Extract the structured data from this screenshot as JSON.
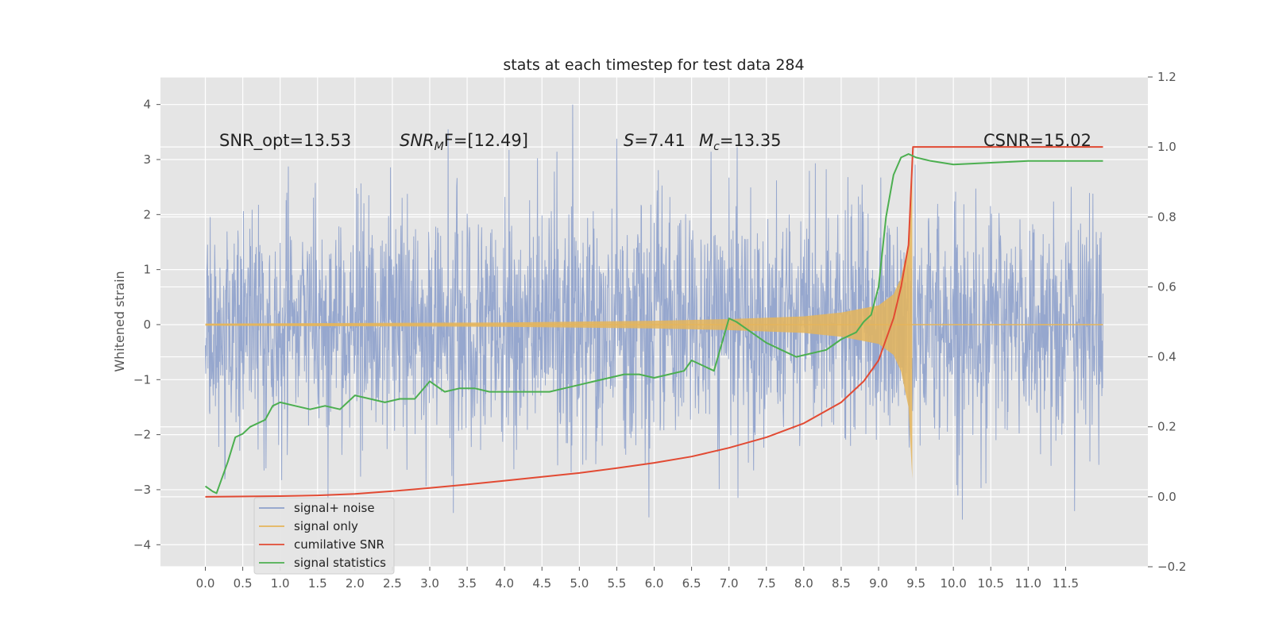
{
  "chart_data": {
    "type": "line",
    "title": "stats at each timestep for test data 284",
    "ylabel": "Whitened strain",
    "ylabel_right": "",
    "xlim": [
      -0.6,
      12.6
    ],
    "ylim": [
      -4.4,
      4.5
    ],
    "ylim_right": [
      -0.2,
      1.2
    ],
    "xticks": [
      "0.0",
      "0.5",
      "1.0",
      "1.5",
      "2.0",
      "2.5",
      "3.0",
      "3.5",
      "4.0",
      "4.5",
      "5.0",
      "5.5",
      "6.0",
      "6.5",
      "7.0",
      "7.5",
      "8.0",
      "8.5",
      "9.0",
      "9.5",
      "10.0",
      "10.5",
      "11.0",
      "11.5"
    ],
    "xtick_values": [
      0,
      0.5,
      1,
      1.5,
      2,
      2.5,
      3,
      3.5,
      4,
      4.5,
      5,
      5.5,
      6,
      6.5,
      7,
      7.5,
      8,
      8.5,
      9,
      9.5,
      10,
      10.5,
      11,
      11.5
    ],
    "yticks": [
      4,
      3,
      2,
      1,
      0,
      -1,
      -2,
      -3,
      -4
    ],
    "yticks_right": [
      1.2,
      1.0,
      0.8,
      0.6,
      0.4,
      0.2,
      0.0,
      -0.2
    ],
    "grid": true,
    "legend_position": "lower-left",
    "annotations": {
      "snr_opt": "SNR_opt=13.53",
      "snr_mf_label": "SNR",
      "snr_mf_sub": "M",
      "snr_mf_value": "F=[12.49]",
      "s_label": "S",
      "s_value": "=7.41",
      "mc_label": "M",
      "mc_sub": "c",
      "mc_value": "=13.35",
      "csnr": "CSNR=15.02"
    },
    "series": [
      {
        "name": "signal+ noise",
        "axis": "left",
        "color": "#8da0cb",
        "note": "noisy whitened strain, amplitude mostly within -2..2 with spikes to about ±4",
        "x_range": [
          0,
          12.0
        ]
      },
      {
        "name": "signal only",
        "axis": "left",
        "color": "#e5b55a",
        "envelope_x": [
          0,
          4,
          6,
          7,
          8,
          8.5,
          9.0,
          9.2,
          9.3,
          9.4,
          9.45
        ],
        "envelope_y": [
          0.02,
          0.04,
          0.07,
          0.1,
          0.15,
          0.22,
          0.35,
          0.55,
          0.85,
          1.5,
          2.8
        ]
      },
      {
        "name": "cumilative SNR",
        "axis": "right",
        "color": "#e24a33",
        "x": [
          0,
          1,
          1.5,
          2,
          2.5,
          3,
          3.5,
          4,
          4.5,
          5,
          5.5,
          6,
          6.5,
          7,
          7.5,
          8,
          8.5,
          8.8,
          9.0,
          9.2,
          9.3,
          9.4,
          9.46,
          9.5,
          10,
          11,
          12
        ],
        "values": [
          0.0,
          0.002,
          0.004,
          0.008,
          0.016,
          0.025,
          0.035,
          0.046,
          0.057,
          0.068,
          0.082,
          0.097,
          0.115,
          0.14,
          0.17,
          0.21,
          0.27,
          0.33,
          0.39,
          0.51,
          0.6,
          0.72,
          1.0,
          1.0,
          1.0,
          1.0,
          1.0
        ]
      },
      {
        "name": "signal statistics",
        "axis": "right",
        "color": "#4caf50",
        "x": [
          0,
          0.1,
          0.15,
          0.2,
          0.3,
          0.4,
          0.5,
          0.6,
          0.7,
          0.8,
          0.9,
          1.0,
          1.2,
          1.4,
          1.6,
          1.8,
          2.0,
          2.2,
          2.4,
          2.6,
          2.8,
          3.0,
          3.2,
          3.4,
          3.6,
          3.8,
          4.0,
          4.2,
          4.4,
          4.6,
          4.8,
          5.0,
          5.2,
          5.4,
          5.6,
          5.8,
          6.0,
          6.2,
          6.4,
          6.5,
          6.6,
          6.8,
          7.0,
          7.1,
          7.3,
          7.5,
          7.7,
          7.9,
          8.1,
          8.3,
          8.5,
          8.7,
          8.8,
          8.9,
          9.0,
          9.1,
          9.2,
          9.3,
          9.4,
          9.5,
          9.7,
          10.0,
          10.5,
          11.0,
          12.0
        ],
        "values": [
          0.03,
          0.015,
          0.01,
          0.04,
          0.1,
          0.17,
          0.18,
          0.2,
          0.21,
          0.22,
          0.26,
          0.27,
          0.26,
          0.25,
          0.26,
          0.25,
          0.29,
          0.28,
          0.27,
          0.28,
          0.28,
          0.33,
          0.3,
          0.31,
          0.31,
          0.3,
          0.3,
          0.3,
          0.3,
          0.3,
          0.31,
          0.32,
          0.33,
          0.34,
          0.35,
          0.35,
          0.34,
          0.35,
          0.36,
          0.39,
          0.38,
          0.36,
          0.51,
          0.5,
          0.47,
          0.44,
          0.42,
          0.4,
          0.41,
          0.42,
          0.45,
          0.47,
          0.5,
          0.52,
          0.6,
          0.8,
          0.92,
          0.97,
          0.98,
          0.97,
          0.96,
          0.95,
          0.955,
          0.96,
          0.96
        ]
      }
    ]
  }
}
